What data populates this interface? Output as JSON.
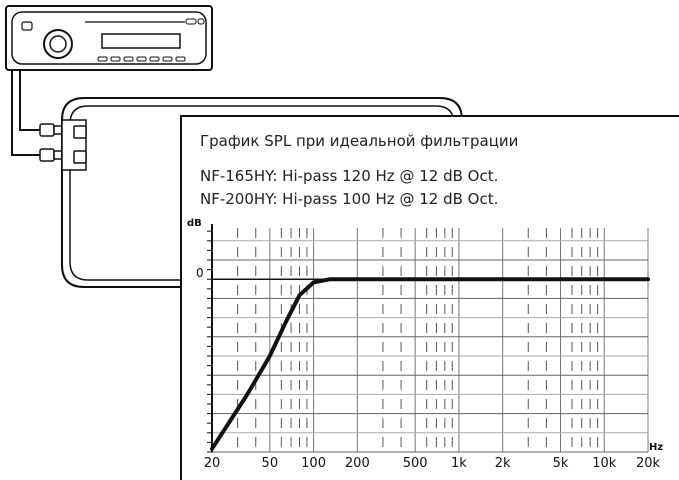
{
  "chart_data": {
    "type": "line",
    "title": "График SPL при идеальной фильтрации",
    "subtitles": [
      "NF-165HY: Hi-pass 120 Hz @ 12 dB Oct.",
      "NF-200HY: Hi-pass 100 Hz @ 12 dB Oct."
    ],
    "xlabel": "Hz",
    "ylabel": "dB",
    "x_scale": "log",
    "xlim": [
      20,
      20000
    ],
    "x_ticks": [
      {
        "value": 20,
        "label": "20"
      },
      {
        "value": 50,
        "label": "50"
      },
      {
        "value": 100,
        "label": "100"
      },
      {
        "value": 200,
        "label": "200"
      },
      {
        "value": 500,
        "label": "500"
      },
      {
        "value": 1000,
        "label": "1k"
      },
      {
        "value": 2000,
        "label": "2k"
      },
      {
        "value": 5000,
        "label": "5k"
      },
      {
        "value": 10000,
        "label": "10k"
      },
      {
        "value": 20000,
        "label": "20k"
      }
    ],
    "y_ticks": [
      {
        "value": 0,
        "label": "0"
      }
    ],
    "grid": true,
    "series": [
      {
        "x": [
          20,
          35,
          50,
          65,
          80,
          100,
          130,
          200,
          500,
          1000,
          5000,
          20000
        ],
        "y": [
          -53,
          -36,
          -24,
          -13,
          -5,
          -1,
          0,
          0,
          0,
          0,
          0,
          0
        ]
      }
    ],
    "ylim": [
      -54,
      16
    ],
    "major_y_step": 12
  }
}
